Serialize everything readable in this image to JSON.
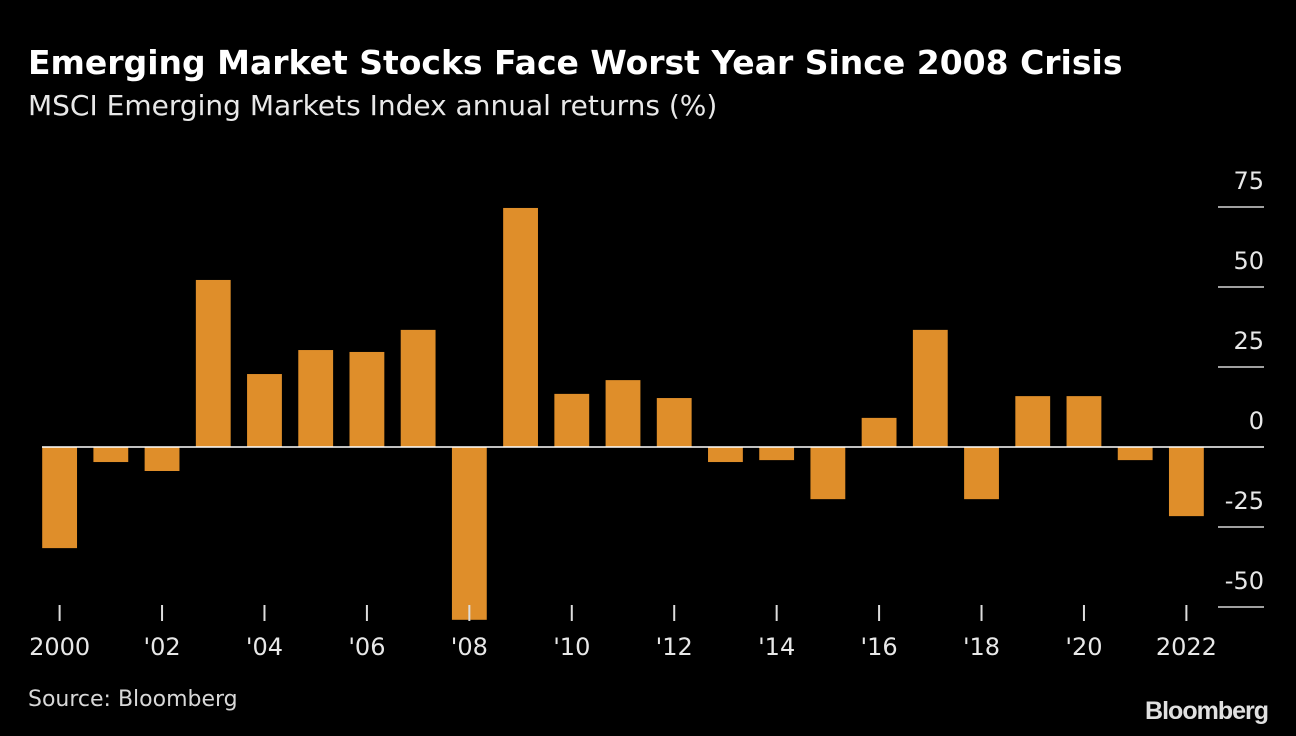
{
  "chart_data": {
    "type": "bar",
    "title": "Emerging Market Stocks Face Worst Year Since 2008 Crisis",
    "subtitle": "MSCI Emerging Markets Index annual returns (%)",
    "source": "Source: Bloomberg",
    "brand": "Bloomberg",
    "categories": [
      "2000",
      null,
      "'02",
      null,
      "'04",
      null,
      "'06",
      null,
      "'08",
      null,
      "'10",
      null,
      "'12",
      null,
      "'14",
      null,
      "'16",
      null,
      "'18",
      null,
      "'20",
      null,
      "2022"
    ],
    "values": [
      -31.6,
      -4.7,
      -7.5,
      52.2,
      22.8,
      30.3,
      29.7,
      36.6,
      -54,
      74.7,
      16.6,
      20.9,
      15.3,
      -4.7,
      -4.1,
      -16.3,
      9.1,
      36.6,
      -16.3,
      15.9,
      15.9,
      -4.1,
      -21.6
    ],
    "color": "#df8e2a",
    "ylim": [
      -55,
      80
    ],
    "yticks": [
      -50,
      -25,
      0,
      25,
      50,
      75
    ],
    "grid": false
  }
}
